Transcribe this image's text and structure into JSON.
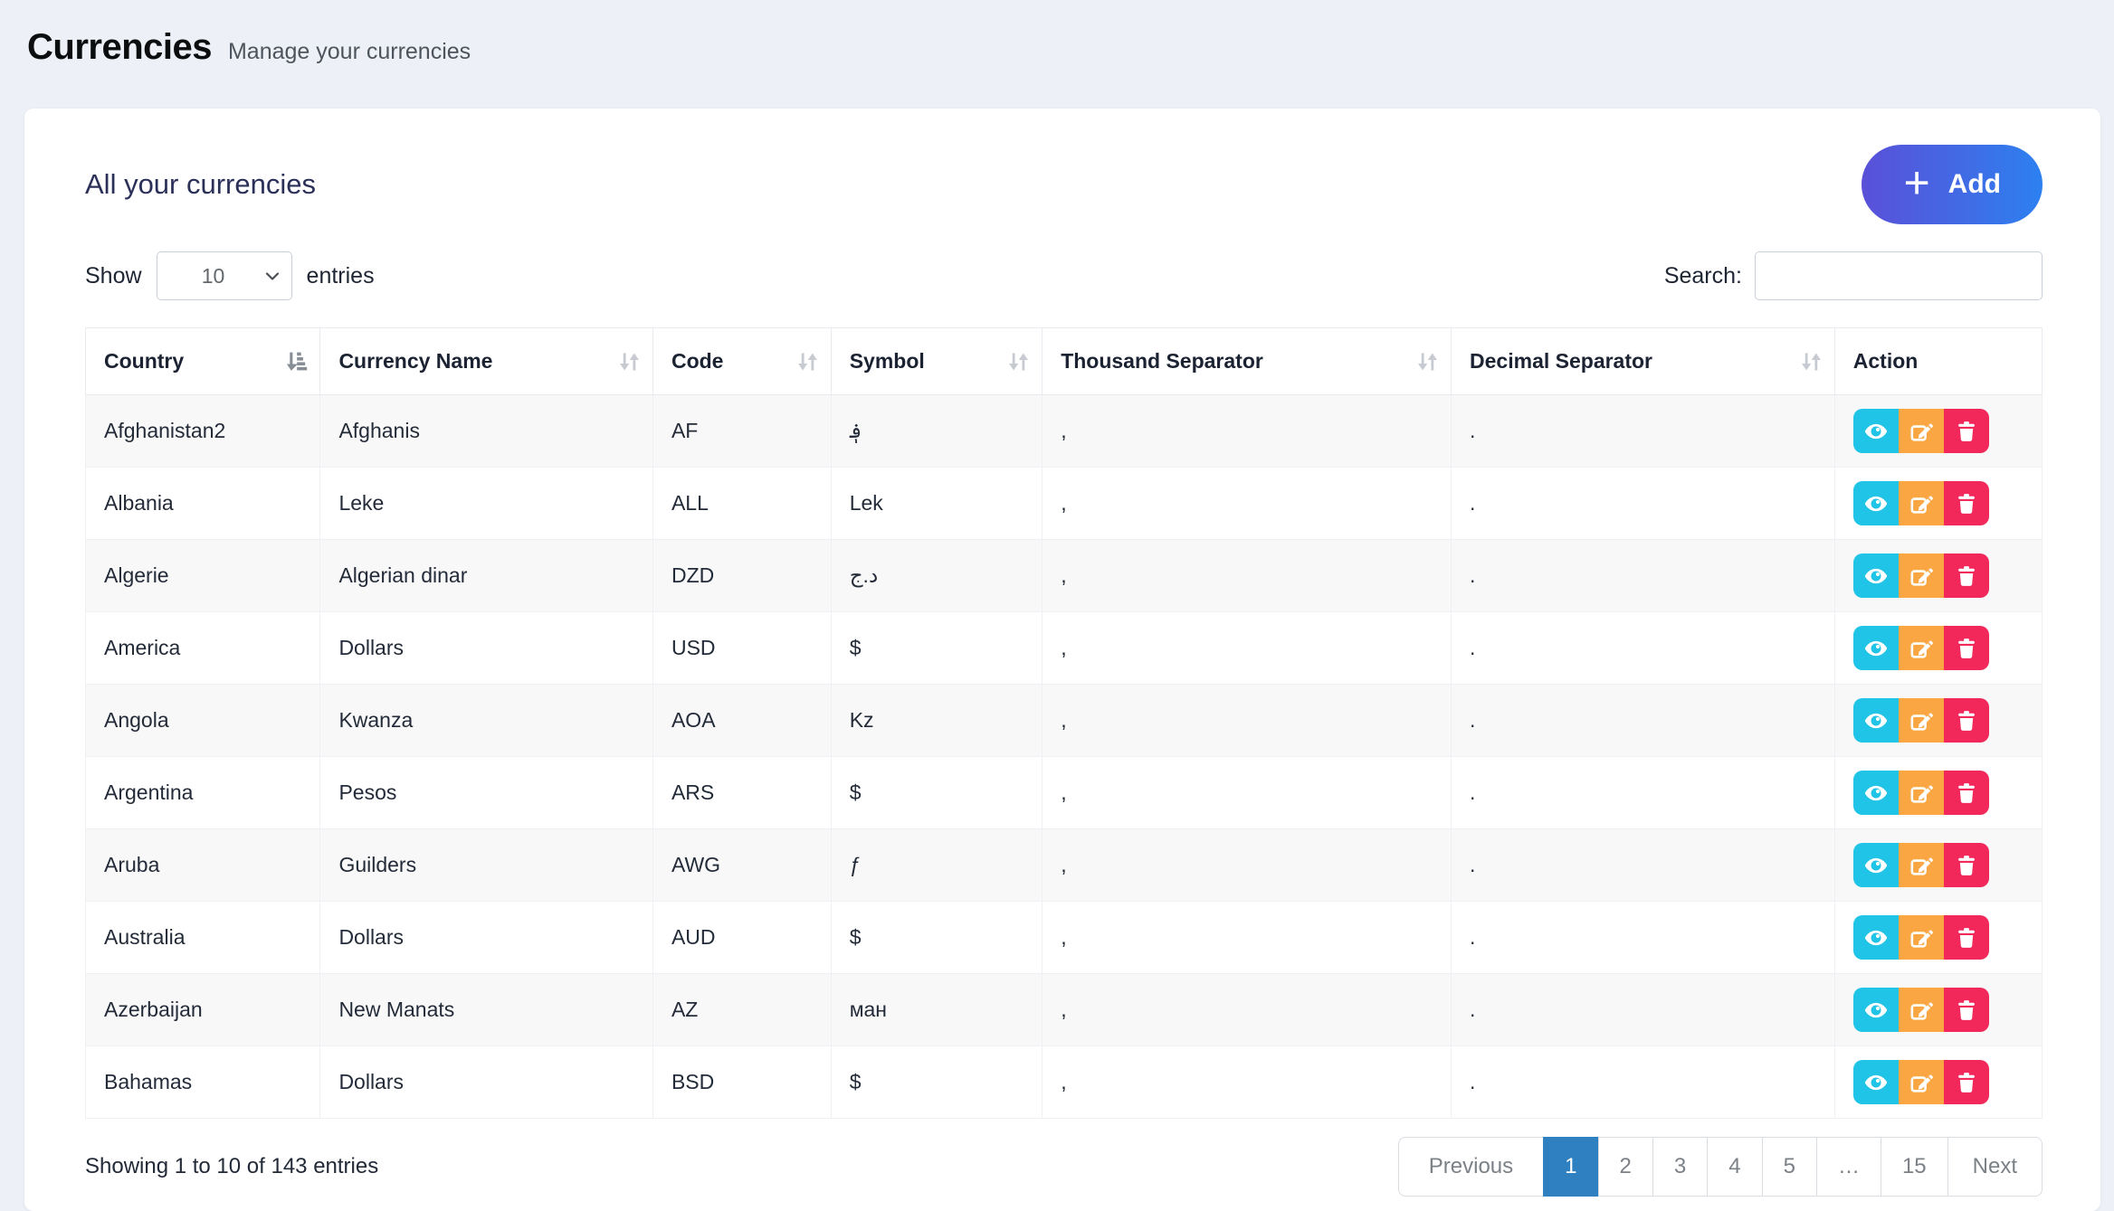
{
  "page": {
    "title": "Currencies",
    "subtitle": "Manage your currencies"
  },
  "card": {
    "title": "All your currencies",
    "add_button_label": "Add",
    "add_plus": "+"
  },
  "controls": {
    "show_label": "Show",
    "entries_label": "entries",
    "page_size": "10",
    "search_label": "Search:",
    "search_value": ""
  },
  "table": {
    "columns": [
      {
        "label": "Country",
        "sort": "desc"
      },
      {
        "label": "Currency Name",
        "sort": "both"
      },
      {
        "label": "Code",
        "sort": "both"
      },
      {
        "label": "Symbol",
        "sort": "both"
      },
      {
        "label": "Thousand Separator",
        "sort": "both"
      },
      {
        "label": "Decimal Separator",
        "sort": "both"
      },
      {
        "label": "Action",
        "sort": "none"
      }
    ],
    "rows": [
      {
        "country": "Afghanistan2",
        "name": "Afghanis",
        "code": "AF",
        "symbol": "؋",
        "thousand": ",",
        "decimal": "."
      },
      {
        "country": "Albania",
        "name": "Leke",
        "code": "ALL",
        "symbol": "Lek",
        "thousand": ",",
        "decimal": "."
      },
      {
        "country": "Algerie",
        "name": "Algerian dinar",
        "code": "DZD",
        "symbol": "د.ج",
        "thousand": ",",
        "decimal": "."
      },
      {
        "country": "America",
        "name": "Dollars",
        "code": "USD",
        "symbol": "$",
        "thousand": ",",
        "decimal": "."
      },
      {
        "country": "Angola",
        "name": "Kwanza",
        "code": "AOA",
        "symbol": "Kz",
        "thousand": ",",
        "decimal": "."
      },
      {
        "country": "Argentina",
        "name": "Pesos",
        "code": "ARS",
        "symbol": "$",
        "thousand": ",",
        "decimal": "."
      },
      {
        "country": "Aruba",
        "name": "Guilders",
        "code": "AWG",
        "symbol": "ƒ",
        "thousand": ",",
        "decimal": "."
      },
      {
        "country": "Australia",
        "name": "Dollars",
        "code": "AUD",
        "symbol": "$",
        "thousand": ",",
        "decimal": "."
      },
      {
        "country": "Azerbaijan",
        "name": "New Manats",
        "code": "AZ",
        "symbol": "ман",
        "thousand": ",",
        "decimal": "."
      },
      {
        "country": "Bahamas",
        "name": "Dollars",
        "code": "BSD",
        "symbol": "$",
        "thousand": ",",
        "decimal": "."
      }
    ],
    "actions": [
      "view",
      "edit",
      "delete"
    ]
  },
  "footer": {
    "info": "Showing 1 to 10 of 143 entries",
    "pagination": [
      "Previous",
      "1",
      "2",
      "3",
      "4",
      "5",
      "…",
      "15",
      "Next"
    ],
    "active_page": "1"
  },
  "colors": {
    "page_background": "#edf0f6",
    "accent_gradient_start": "#5a50d8",
    "accent_gradient_end": "#2d80f0",
    "card_title": "#2b3058",
    "view_button": "#20c4e6",
    "edit_button": "#f9a643",
    "delete_button": "#f2275a",
    "pagination_active": "#2f80c0"
  }
}
